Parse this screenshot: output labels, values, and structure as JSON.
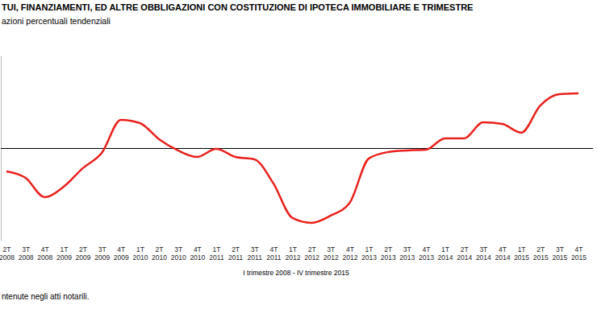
{
  "chart_data": {
    "type": "line",
    "title": "TUI, FINANZIAMENTI, ED ALTRE OBBLIGAZIONI CON COSTITUZIONE DI IPOTECA IMMOBILIARE E TRIMESTRE",
    "subtitle": "azioni percentuali tendenziali",
    "x_label": "I trimestre 2008 - IV trimestre 2015",
    "annotations": [
      "ntenute negli atti notarili."
    ],
    "categories": [
      "2T 2008",
      "3T 2008",
      "4T 2008",
      "1T 2009",
      "2T 2009",
      "3T 2009",
      "4T 2009",
      "1T 2010",
      "2T 2010",
      "3T 2010",
      "4T 2010",
      "1T 2011",
      "2T 2011",
      "3T 2011",
      "4T 2011",
      "1T 2012",
      "2T 2012",
      "3T 2012",
      "4T 2012",
      "1T 2013",
      "2T 2013",
      "3T 2013",
      "4T 2013",
      "1T 2014",
      "2T 2014",
      "3T 2014",
      "4T 2014",
      "1T 2015",
      "2T 2015",
      "3T 2015",
      "4T 2015"
    ],
    "values": [
      -12.6,
      -16.1,
      -26.5,
      -20.9,
      -10.9,
      -2.6,
      15.2,
      13.5,
      4.8,
      -1.3,
      -4.8,
      -0.4,
      -4.8,
      -6.1,
      -19.1,
      -37.8,
      -40.4,
      -36.5,
      -29.6,
      -5.7,
      -2.2,
      -1.3,
      -0.9,
      5.2,
      5.2,
      13.9,
      13.0,
      8.3,
      23.0,
      29.1,
      29.6
    ],
    "color": "#e8201c",
    "ylim": [
      -50,
      50
    ],
    "yticks": [
      0
    ],
    "grid": true,
    "tick_labels": "x"
  }
}
